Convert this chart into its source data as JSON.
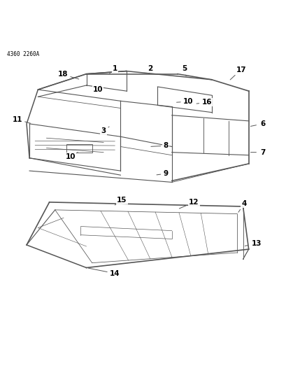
{
  "header_text": "4360 2260A",
  "background_color": "#ffffff",
  "line_color": "#555555",
  "text_color": "#000000",
  "fig_width": 4.1,
  "fig_height": 5.33,
  "dpi": 100,
  "font_sz": 7.5,
  "lw_main": 0.8
}
